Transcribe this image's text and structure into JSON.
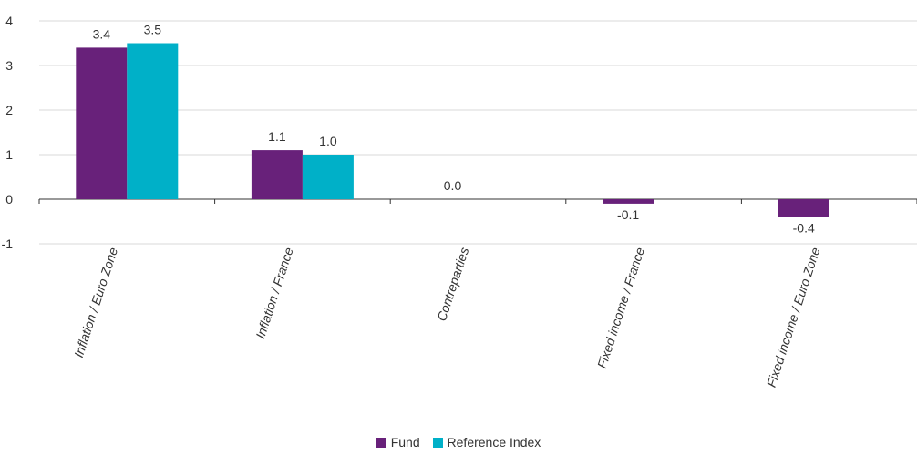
{
  "chart_data": {
    "type": "bar",
    "categories": [
      "Inflation / Euro Zone",
      "Inflation / France",
      "Contreparties",
      "Fixed income / France",
      "Fixed income / Euro Zone"
    ],
    "series": [
      {
        "name": "Fund",
        "values": [
          3.4,
          1.1,
          0.0,
          -0.1,
          -0.4
        ],
        "labels": [
          "3.4",
          "1.1",
          "0.0",
          "-0.1",
          "-0.4"
        ],
        "color": "#68217a"
      },
      {
        "name": "Reference Index",
        "values": [
          3.5,
          1.0,
          null,
          null,
          null
        ],
        "labels": [
          "3.5",
          "1.0",
          "",
          "",
          ""
        ],
        "color": "#00b0c8"
      }
    ],
    "ylim": [
      -1,
      4
    ],
    "yticks": [
      -1,
      0,
      1,
      2,
      3,
      4
    ],
    "ytick_labels": [
      "-1",
      "0",
      "1",
      "2",
      "3",
      "4"
    ],
    "grid": true,
    "legend_position": "bottom-center",
    "title": "",
    "xlabel": "",
    "ylabel": ""
  },
  "legend": {
    "fund_label": "Fund",
    "index_label": "Reference Index"
  }
}
